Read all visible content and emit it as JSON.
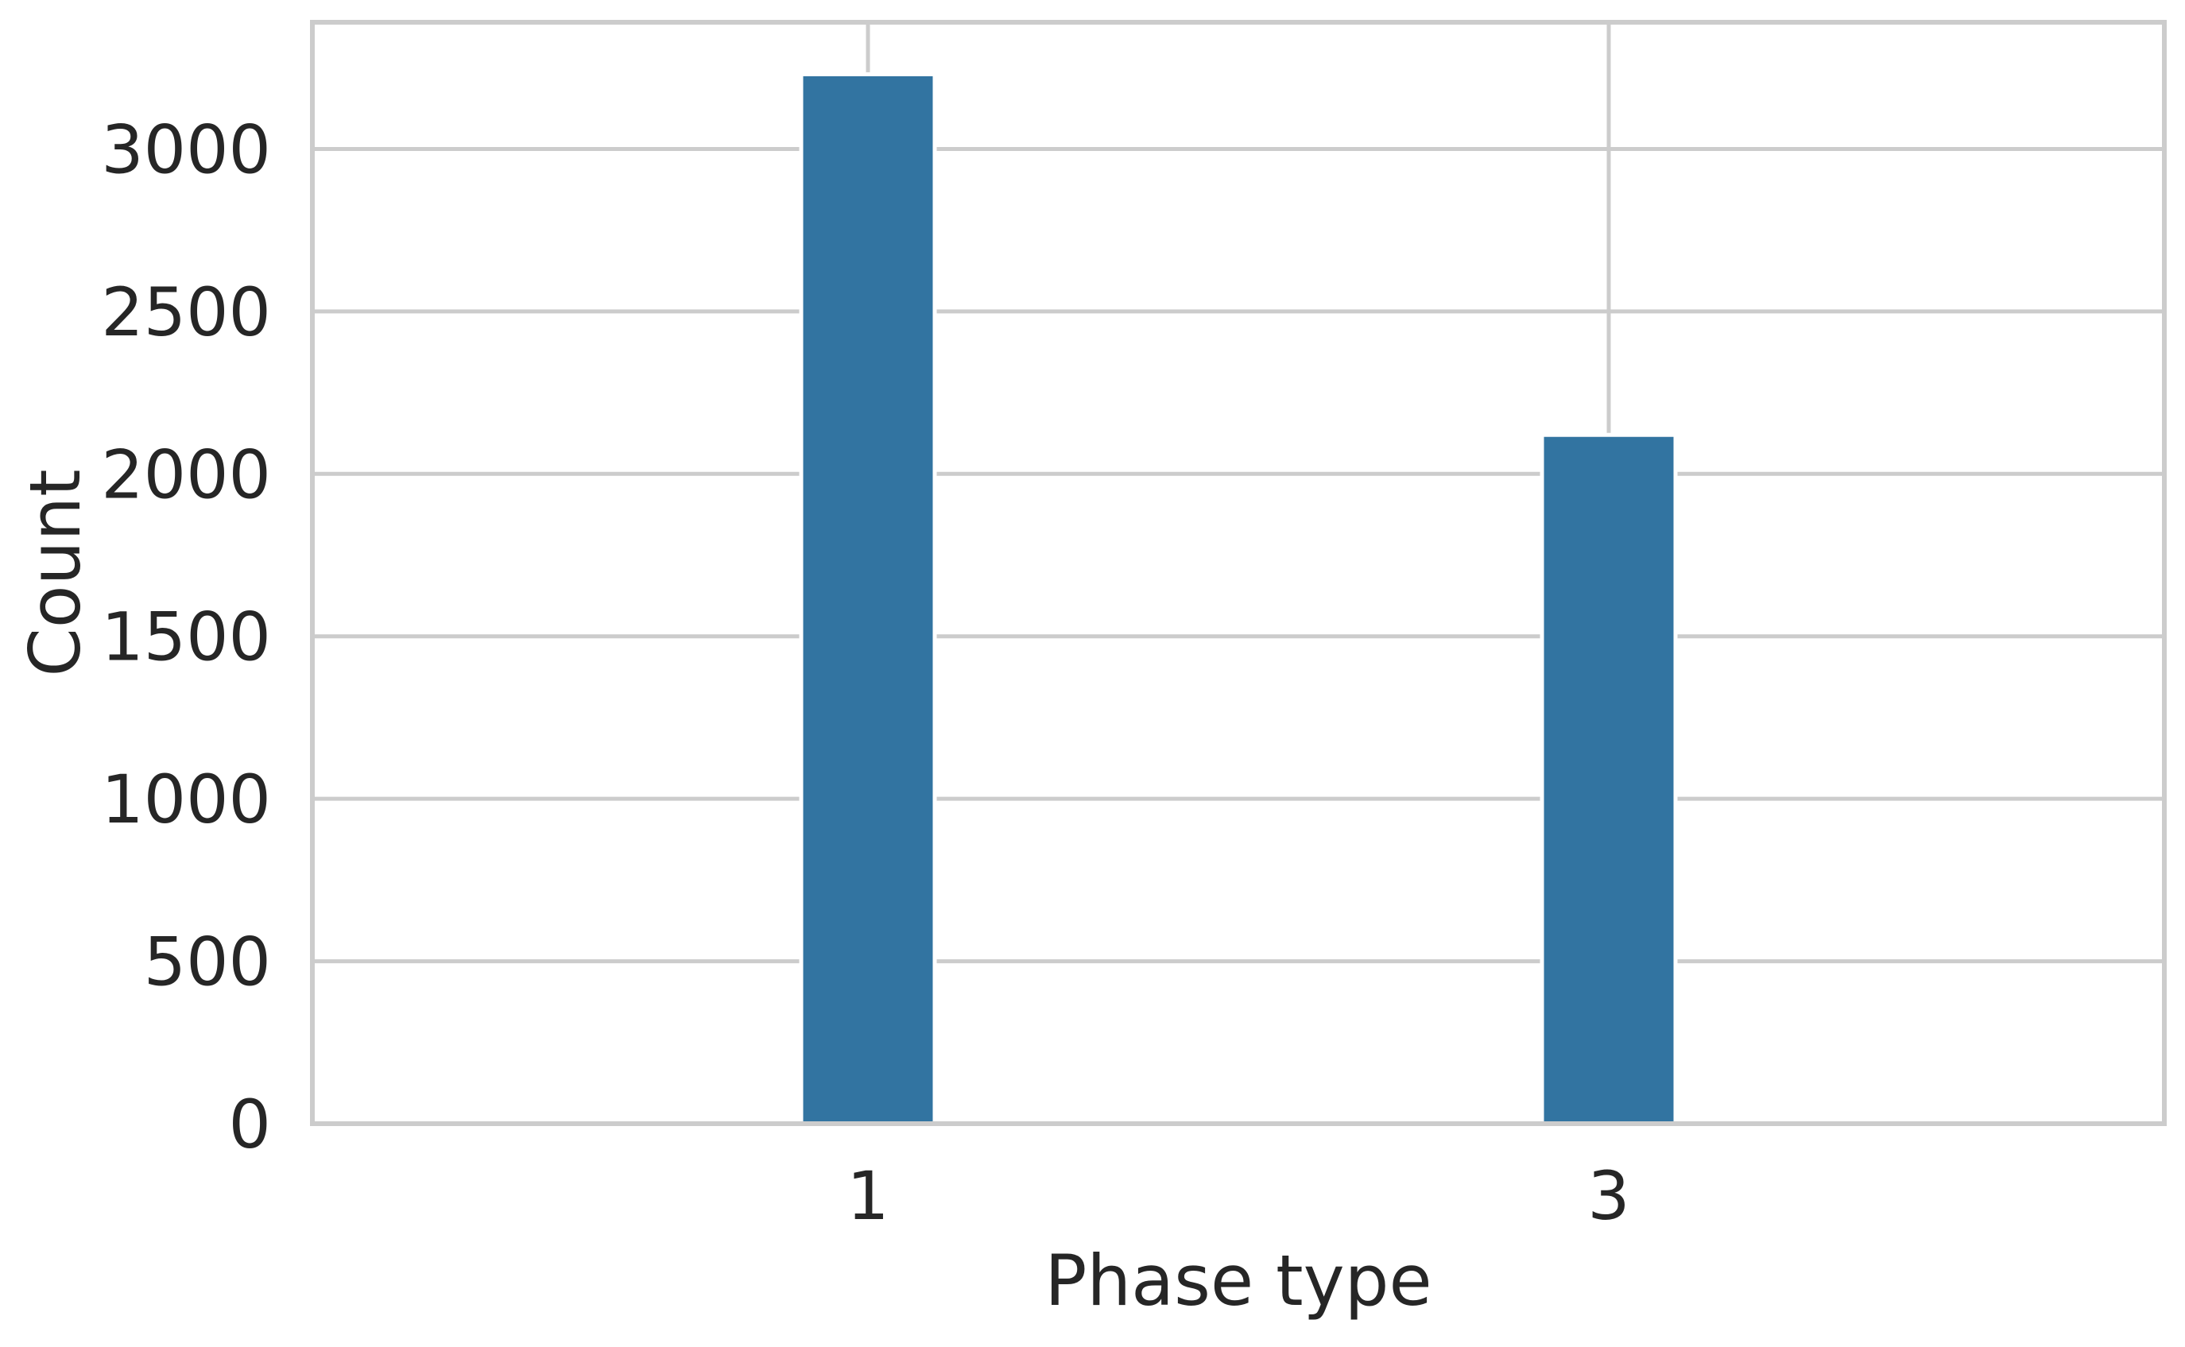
{
  "chart_data": {
    "type": "bar",
    "categories": [
      "1",
      "3"
    ],
    "values": [
      3230,
      2120
    ],
    "xlabel": "Phase type",
    "ylabel": "Count",
    "ylim": [
      0,
      3390
    ],
    "yticks": [
      0,
      500,
      1000,
      1500,
      2000,
      2500,
      3000
    ],
    "grid": true,
    "legend": "none",
    "colors": {
      "bar": "#3274a1",
      "grid": "#cccccc",
      "text": "#262626",
      "background": "#ffffff"
    }
  }
}
